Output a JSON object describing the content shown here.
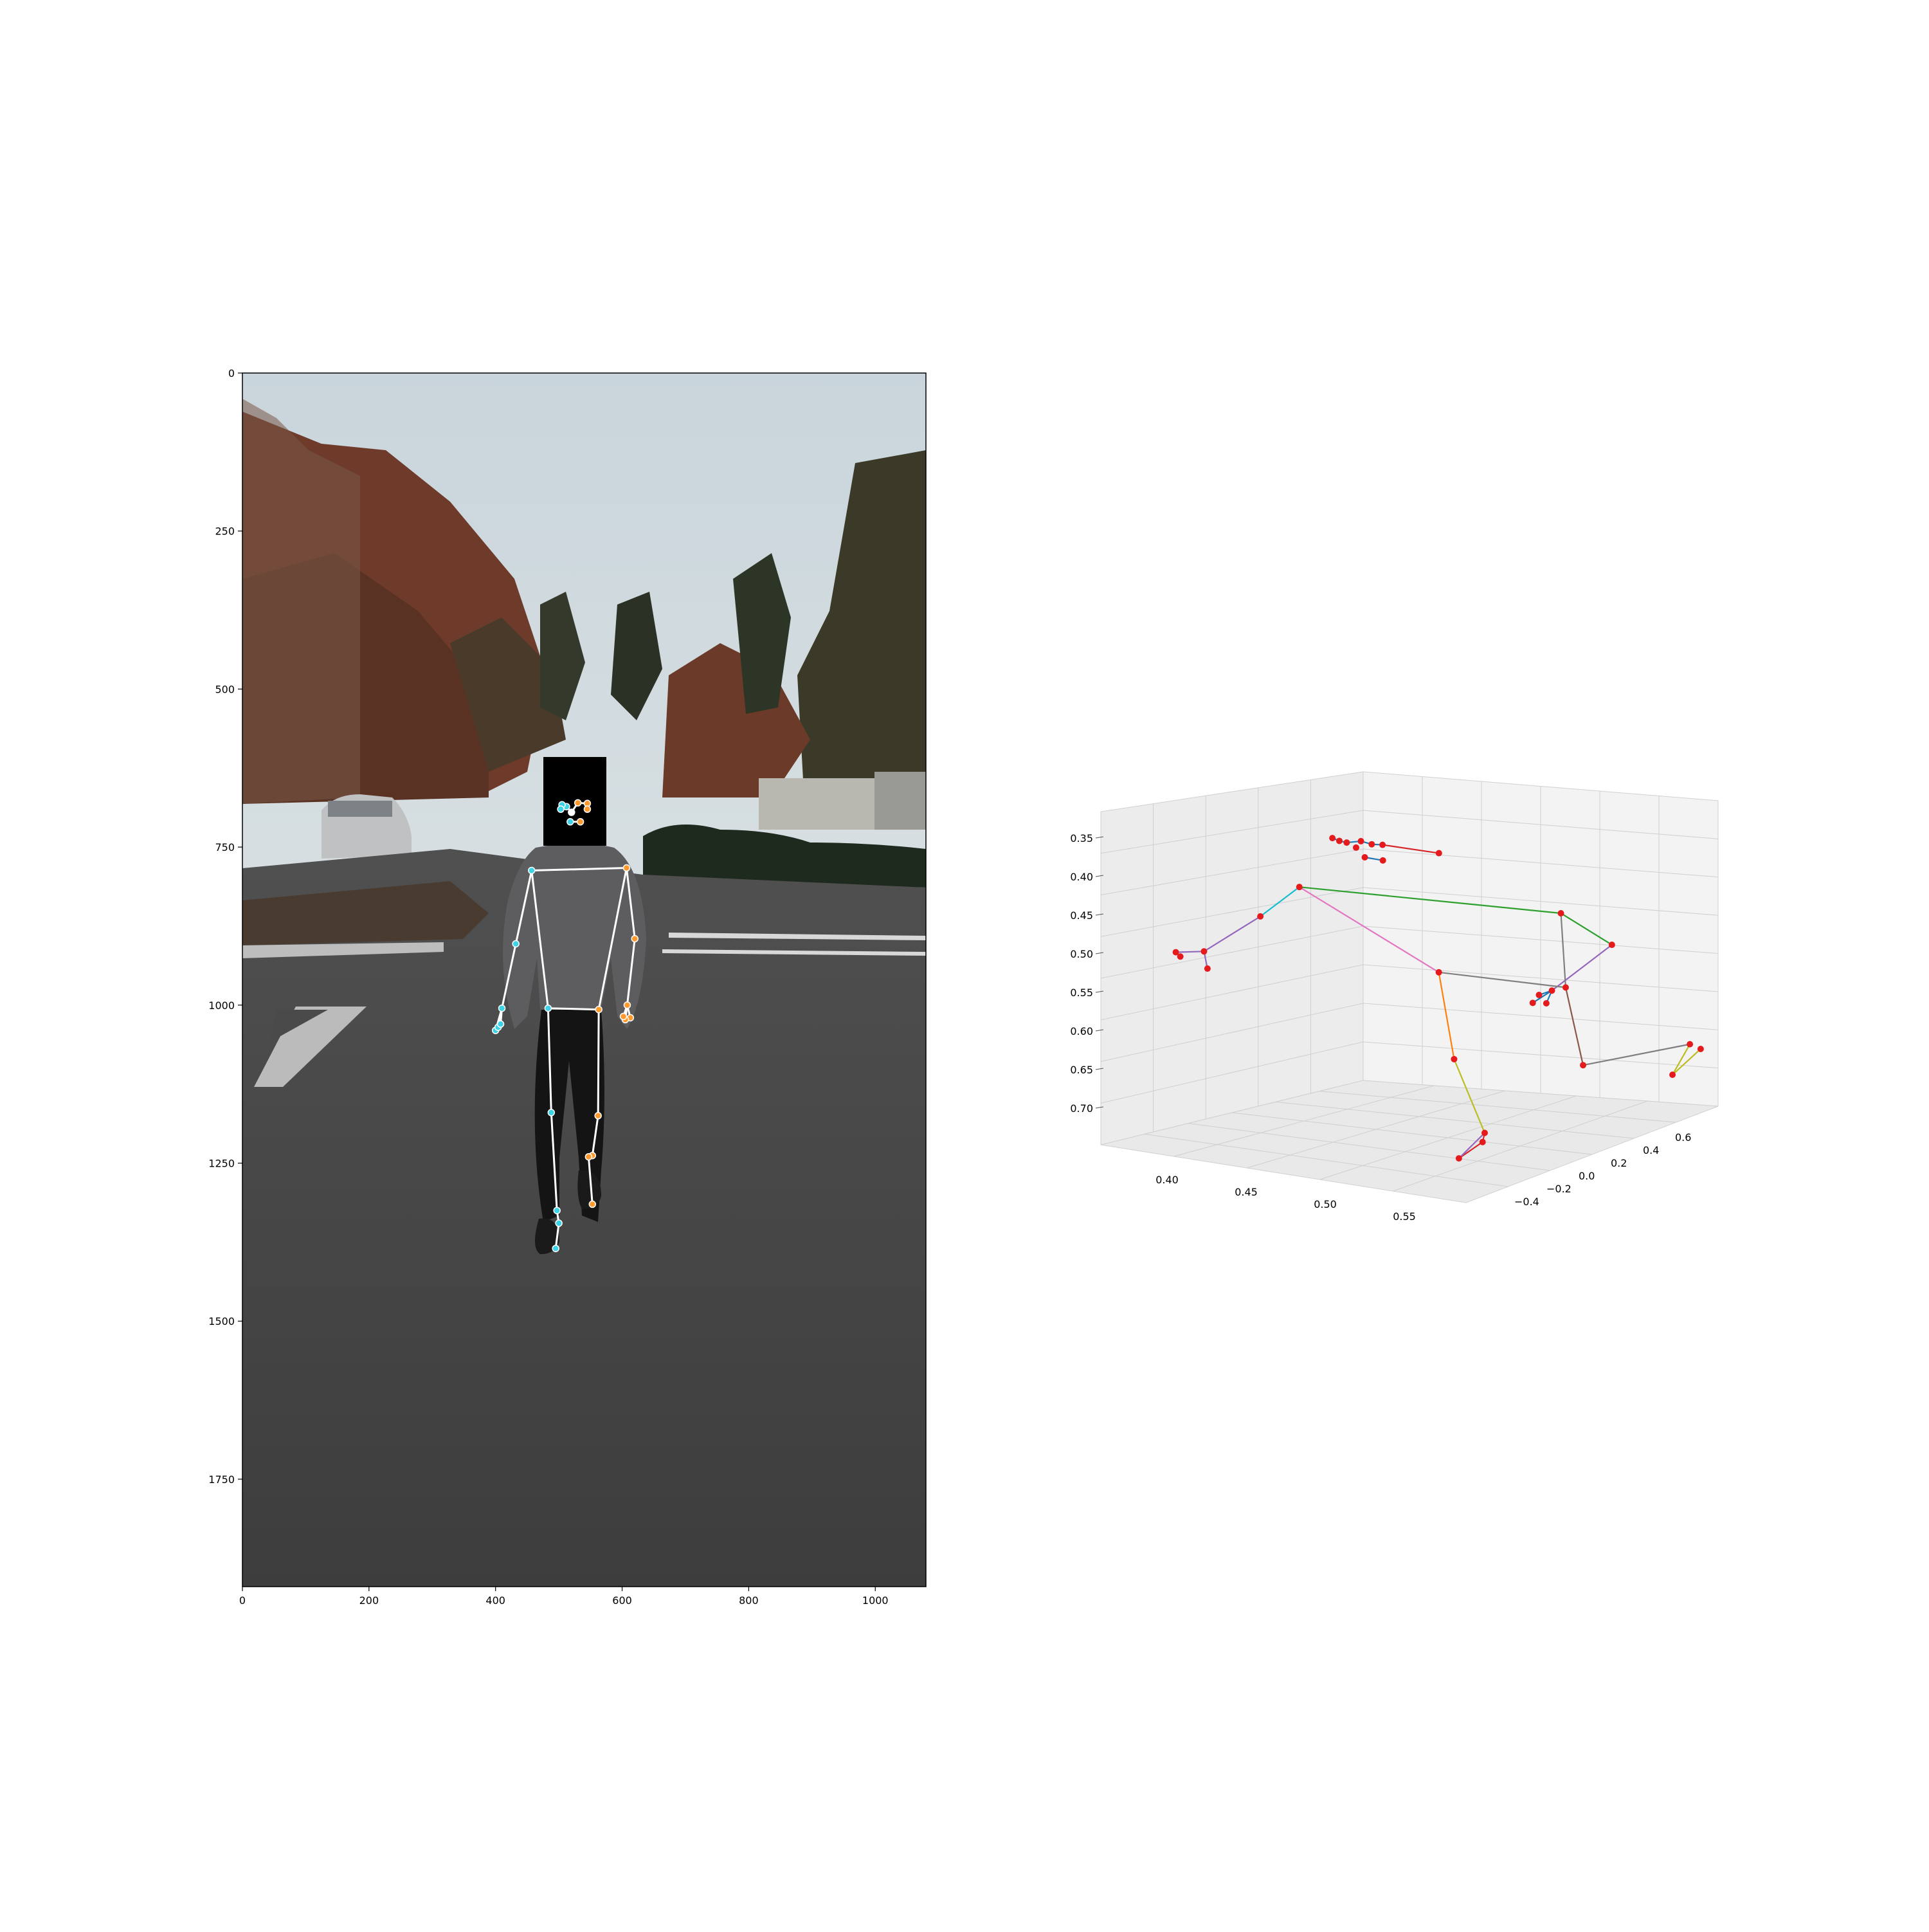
{
  "colors": {
    "skeleton_2d": "#ffffff",
    "left_keypoint": "#3cd3e6",
    "right_keypoint": "#ff9a2e",
    "joint_3d": "#e41a1c",
    "sky": "#cdd9df",
    "road": "#4b4b4b",
    "pane_bg": "#f2f2f2",
    "grid": "#cfcfcf"
  },
  "chart_data": [
    {
      "type": "scatter",
      "description_of_marks": "2D pose keypoints drawn over a video frame of a person walking on a road",
      "x_ticks": [
        0,
        200,
        400,
        600,
        800,
        1000
      ],
      "y_ticks": [
        0,
        250,
        500,
        750,
        1000,
        1250,
        1500,
        1750
      ],
      "xlim": [
        0,
        1080
      ],
      "ylim": [
        1920,
        0
      ],
      "grid": false,
      "keypoints": [
        {
          "name": "nose",
          "x": 520,
          "y": 695,
          "side": "center"
        },
        {
          "name": "left_eye",
          "x": 512,
          "y": 686,
          "side": "left"
        },
        {
          "name": "left_eye_outer",
          "x": 505,
          "y": 683,
          "side": "left"
        },
        {
          "name": "right_eye",
          "x": 530,
          "y": 680,
          "side": "right"
        },
        {
          "name": "right_eye_outer",
          "x": 545,
          "y": 681,
          "side": "right"
        },
        {
          "name": "right_ear",
          "x": 545,
          "y": 690,
          "side": "right"
        },
        {
          "name": "left_ear",
          "x": 503,
          "y": 690,
          "side": "left"
        },
        {
          "name": "mouth_left",
          "x": 518,
          "y": 710,
          "side": "left"
        },
        {
          "name": "mouth_right",
          "x": 534,
          "y": 710,
          "side": "right"
        },
        {
          "name": "right_shoulder",
          "x": 607,
          "y": 783,
          "side": "right"
        },
        {
          "name": "left_shoulder",
          "x": 457,
          "y": 787,
          "side": "left"
        },
        {
          "name": "right_elbow",
          "x": 620,
          "y": 895,
          "side": "right"
        },
        {
          "name": "left_elbow",
          "x": 432,
          "y": 903,
          "side": "left"
        },
        {
          "name": "right_wrist",
          "x": 608,
          "y": 1000,
          "side": "right"
        },
        {
          "name": "left_wrist",
          "x": 410,
          "y": 1005,
          "side": "left"
        },
        {
          "name": "right_pinky",
          "x": 613,
          "y": 1020,
          "side": "right"
        },
        {
          "name": "right_index",
          "x": 605,
          "y": 1023,
          "side": "right"
        },
        {
          "name": "right_thumb",
          "x": 602,
          "y": 1018,
          "side": "right"
        },
        {
          "name": "left_pinky",
          "x": 400,
          "y": 1040,
          "side": "left"
        },
        {
          "name": "left_index",
          "x": 404,
          "y": 1035,
          "side": "left"
        },
        {
          "name": "left_thumb",
          "x": 408,
          "y": 1030,
          "side": "left"
        },
        {
          "name": "right_hip",
          "x": 563,
          "y": 1007,
          "side": "right"
        },
        {
          "name": "left_hip",
          "x": 483,
          "y": 1005,
          "side": "left"
        },
        {
          "name": "right_knee",
          "x": 562,
          "y": 1175,
          "side": "right"
        },
        {
          "name": "left_knee",
          "x": 488,
          "y": 1170,
          "side": "left"
        },
        {
          "name": "right_ankle",
          "x": 553,
          "y": 1238,
          "side": "right"
        },
        {
          "name": "left_ankle",
          "x": 497,
          "y": 1325,
          "side": "left"
        },
        {
          "name": "right_heel",
          "x": 547,
          "y": 1240,
          "side": "right"
        },
        {
          "name": "right_foot_index",
          "x": 553,
          "y": 1315,
          "side": "right"
        },
        {
          "name": "left_heel",
          "x": 500,
          "y": 1345,
          "side": "left"
        },
        {
          "name": "left_foot_index",
          "x": 495,
          "y": 1385,
          "side": "left"
        }
      ],
      "connections": [
        [
          "left_shoulder",
          "right_shoulder"
        ],
        [
          "left_shoulder",
          "left_elbow"
        ],
        [
          "left_elbow",
          "left_wrist"
        ],
        [
          "left_wrist",
          "left_pinky"
        ],
        [
          "left_wrist",
          "left_index"
        ],
        [
          "left_wrist",
          "left_thumb"
        ],
        [
          "right_shoulder",
          "right_elbow"
        ],
        [
          "right_elbow",
          "right_wrist"
        ],
        [
          "right_wrist",
          "right_pinky"
        ],
        [
          "right_wrist",
          "right_index"
        ],
        [
          "right_wrist",
          "right_thumb"
        ],
        [
          "left_shoulder",
          "left_hip"
        ],
        [
          "right_shoulder",
          "right_hip"
        ],
        [
          "left_hip",
          "right_hip"
        ],
        [
          "left_hip",
          "left_knee"
        ],
        [
          "left_knee",
          "left_ankle"
        ],
        [
          "left_ankle",
          "left_heel"
        ],
        [
          "left_heel",
          "left_foot_index"
        ],
        [
          "right_hip",
          "right_knee"
        ],
        [
          "right_knee",
          "right_ankle"
        ],
        [
          "right_ankle",
          "right_heel"
        ],
        [
          "right_heel",
          "right_foot_index"
        ],
        [
          "left_eye_outer",
          "left_eye"
        ],
        [
          "left_eye",
          "nose"
        ],
        [
          "nose",
          "right_eye"
        ],
        [
          "right_eye",
          "right_eye_outer"
        ],
        [
          "left_eye",
          "left_ear"
        ],
        [
          "right_eye_outer",
          "right_ear"
        ],
        [
          "mouth_left",
          "mouth_right"
        ]
      ]
    },
    {
      "type": "scatter",
      "description_of_marks": "3D pose joints with limb segments",
      "x_ticks": [
        "0.40",
        "0.45",
        "0.50",
        "0.55"
      ],
      "y_ticks": [
        "−0.4",
        "−0.2",
        "0.0",
        "0.2",
        "0.4",
        "0.6"
      ],
      "z_ticks": [
        "0.35",
        "0.40",
        "0.45",
        "0.50",
        "0.55",
        "0.60",
        "0.65",
        "0.70"
      ],
      "grid": true,
      "joints": [
        {
          "name": "head_1",
          "x": 0.479,
          "y": -0.3,
          "z": 0.345
        },
        {
          "name": "head_2",
          "x": 0.483,
          "y": -0.3,
          "z": 0.347
        },
        {
          "name": "head_3",
          "x": 0.486,
          "y": -0.29,
          "z": 0.349
        },
        {
          "name": "head_4",
          "x": 0.493,
          "y": -0.28,
          "z": 0.346
        },
        {
          "name": "head_5",
          "x": 0.498,
          "y": -0.27,
          "z": 0.349
        },
        {
          "name": "head_6",
          "x": 0.503,
          "y": -0.26,
          "z": 0.349
        },
        {
          "name": "head_7",
          "x": 0.533,
          "y": -0.24,
          "z": 0.351
        },
        {
          "name": "head_8",
          "x": 0.489,
          "y": -0.27,
          "z": 0.356
        },
        {
          "name": "head_9",
          "x": 0.494,
          "y": -0.27,
          "z": 0.366
        },
        {
          "name": "head_10",
          "x": 0.502,
          "y": -0.25,
          "z": 0.369
        },
        {
          "name": "left_shoulder",
          "x": 0.46,
          "y": -0.3,
          "z": 0.41
        },
        {
          "name": "right_shoulder",
          "x": 0.55,
          "y": 0.2,
          "z": 0.46
        },
        {
          "name": "left_elbow",
          "x": 0.44,
          "y": -0.32,
          "z": 0.45
        },
        {
          "name": "left_wrist",
          "x": 0.41,
          "y": -0.34,
          "z": 0.5
        },
        {
          "name": "left_hand_1",
          "x": 0.395,
          "y": -0.35,
          "z": 0.505
        },
        {
          "name": "left_hand_2",
          "x": 0.397,
          "y": -0.345,
          "z": 0.51
        },
        {
          "name": "left_hand_3",
          "x": 0.412,
          "y": -0.34,
          "z": 0.52
        },
        {
          "name": "right_elbow",
          "x": 0.56,
          "y": 0.36,
          "z": 0.51
        },
        {
          "name": "right_wrist",
          "x": 0.54,
          "y": 0.24,
          "z": 0.56
        },
        {
          "name": "right_hand_1",
          "x": 0.535,
          "y": 0.22,
          "z": 0.565
        },
        {
          "name": "right_hand_2",
          "x": 0.532,
          "y": 0.215,
          "z": 0.575
        },
        {
          "name": "right_hand_3",
          "x": 0.538,
          "y": 0.23,
          "z": 0.575
        },
        {
          "name": "left_hip",
          "x": 0.51,
          "y": -0.05,
          "z": 0.52
        },
        {
          "name": "right_hip",
          "x": 0.56,
          "y": 0.14,
          "z": 0.54
        },
        {
          "name": "left_knee",
          "x": 0.52,
          "y": -0.06,
          "z": 0.62
        },
        {
          "name": "left_ankle",
          "x": 0.54,
          "y": -0.08,
          "z": 0.7
        },
        {
          "name": "left_heel",
          "x": 0.54,
          "y": -0.09,
          "z": 0.71
        },
        {
          "name": "left_foot_index",
          "x": 0.53,
          "y": -0.12,
          "z": 0.73
        },
        {
          "name": "right_knee",
          "x": 0.57,
          "y": 0.14,
          "z": 0.63
        },
        {
          "name": "right_ankle",
          "x": 0.6,
          "y": 0.4,
          "z": 0.62
        },
        {
          "name": "right_heel",
          "x": 0.605,
          "y": 0.41,
          "z": 0.625
        },
        {
          "name": "right_foot_index",
          "x": 0.59,
          "y": 0.4,
          "z": 0.66
        }
      ],
      "connections": [
        {
          "from": "left_shoulder",
          "to": "right_shoulder",
          "color": "#2ca02c"
        },
        {
          "from": "right_shoulder",
          "to": "right_elbow",
          "color": "#2ca02c"
        },
        {
          "from": "right_elbow",
          "to": "right_wrist",
          "color": "#9467bd"
        },
        {
          "from": "right_wrist",
          "to": "right_hand_1",
          "color": "#1f77b4"
        },
        {
          "from": "right_wrist",
          "to": "right_hand_2",
          "color": "#1f77b4"
        },
        {
          "from": "right_wrist",
          "to": "right_hand_3",
          "color": "#1f77b4"
        },
        {
          "from": "left_shoulder",
          "to": "left_elbow",
          "color": "#17becf"
        },
        {
          "from": "left_elbow",
          "to": "left_wrist",
          "color": "#9467bd"
        },
        {
          "from": "left_wrist",
          "to": "left_hand_1",
          "color": "#9467bd"
        },
        {
          "from": "left_wrist",
          "to": "left_hand_3",
          "color": "#9467bd"
        },
        {
          "from": "left_shoulder",
          "to": "left_hip",
          "color": "#e377c2"
        },
        {
          "from": "right_shoulder",
          "to": "right_hip",
          "color": "#7f7f7f"
        },
        {
          "from": "left_hip",
          "to": "right_hip",
          "color": "#7f7f7f"
        },
        {
          "from": "left_hip",
          "to": "left_knee",
          "color": "#ff7f0e"
        },
        {
          "from": "left_knee",
          "to": "left_ankle",
          "color": "#bcbd22"
        },
        {
          "from": "left_ankle",
          "to": "left_heel",
          "color": "#d62728"
        },
        {
          "from": "left_heel",
          "to": "left_foot_index",
          "color": "#d62728"
        },
        {
          "from": "left_ankle",
          "to": "left_foot_index",
          "color": "#9467bd"
        },
        {
          "from": "right_hip",
          "to": "right_knee",
          "color": "#8c564b"
        },
        {
          "from": "right_knee",
          "to": "right_ankle",
          "color": "#7f7f7f"
        },
        {
          "from": "right_ankle",
          "to": "right_foot_index",
          "color": "#bcbd22"
        },
        {
          "from": "right_heel",
          "to": "right_foot_index",
          "color": "#bcbd22"
        },
        {
          "from": "head_1",
          "to": "head_2",
          "color": "#1f77b4"
        },
        {
          "from": "head_2",
          "to": "head_3",
          "color": "#1f77b4"
        },
        {
          "from": "head_3",
          "to": "head_4",
          "color": "#1f77b4"
        },
        {
          "from": "head_4",
          "to": "head_5",
          "color": "#1f77b4"
        },
        {
          "from": "head_5",
          "to": "head_6",
          "color": "#1f77b4"
        },
        {
          "from": "head_6",
          "to": "head_7",
          "color": "#d62728"
        },
        {
          "from": "head_9",
          "to": "head_10",
          "color": "#1f77b4"
        }
      ]
    }
  ]
}
